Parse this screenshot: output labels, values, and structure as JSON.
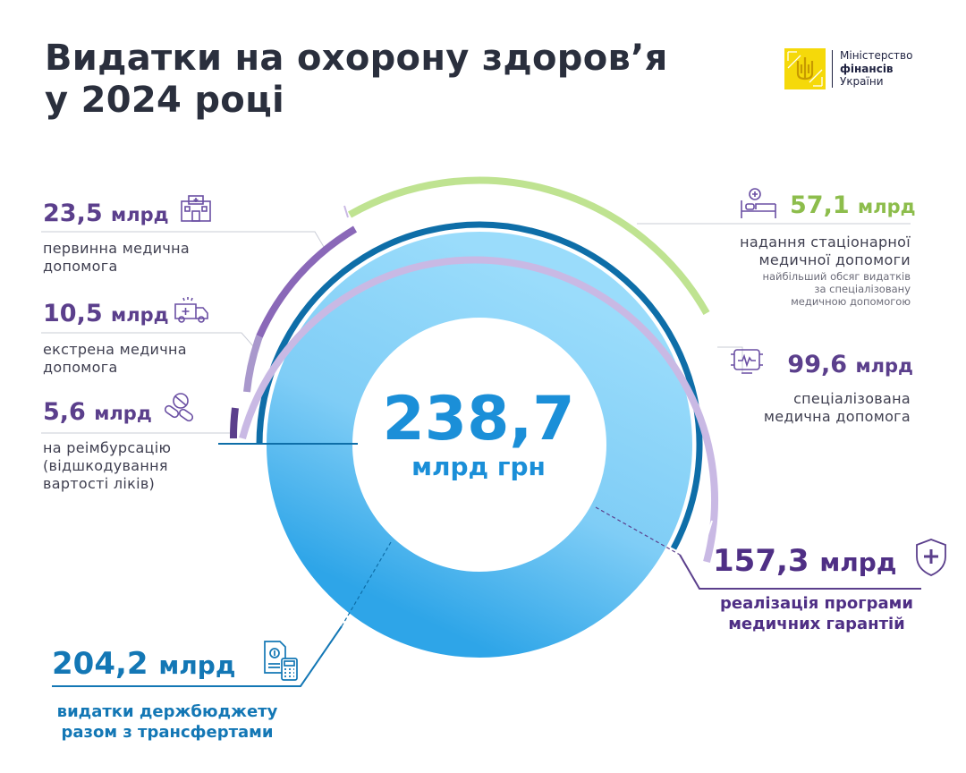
{
  "header": {
    "title_line1": "Видатки на охорону здоров’я",
    "title_line2": "у 2024 році"
  },
  "logo": {
    "line1": "Міністерство",
    "line2": "фінансів",
    "line3": "України",
    "emblem_icon": "trident-icon",
    "color": "#f5d90a"
  },
  "center": {
    "value": "238,7",
    "unit": "млрд грн"
  },
  "labels": {
    "primary": {
      "value": "23,5",
      "unit": "млрд",
      "line1": "первинна медична",
      "line2": "допомога",
      "icon": "clinic-icon"
    },
    "emergency": {
      "value": "10,5",
      "unit": "млрд",
      "line1": "екстрена медична",
      "line2": "допомога",
      "icon": "ambulance-icon"
    },
    "reimbursement": {
      "value": "5,6",
      "unit": "млрд",
      "line1": "на реімбурсацію",
      "line2": "(відшкодування",
      "line3": "вартості ліків)",
      "icon": "pills-icon"
    },
    "inpatient": {
      "value": "57,1",
      "unit": "млрд",
      "line1": "надання стаціонарної",
      "line2": "медичної допомоги",
      "note1": "найбільший обсяг видатків",
      "note2": "за спеціалізовану",
      "note3": "медичною допомогою",
      "icon": "hospital-bed-icon"
    },
    "specialized": {
      "value": "99,6",
      "unit": "млрд",
      "line1": "спеціалізована",
      "line2": "медична допомога",
      "icon": "monitor-heart-icon"
    },
    "guarantees": {
      "value": "157,3",
      "unit": "млрд",
      "line1": "реалізація програми",
      "line2": "медичних гарантій",
      "icon": "shield-cross-icon"
    },
    "budget": {
      "value": "204,2",
      "unit": "млрд",
      "line1": "видатки держбюджету",
      "line2": "разом з трансфертами",
      "icon": "calculator-icon"
    }
  },
  "colors": {
    "donut_light": "#8ed6fa",
    "donut_dark": "#2aa2e6",
    "dark_blue_ring": "#0e6ea8",
    "lavender": "#c9b9e4",
    "purple": "#8a68b8",
    "deep_purple": "#5b3f8c",
    "green": "#b8e08a",
    "accent_blue": "#1b8fd8"
  },
  "chart_data": {
    "type": "pie",
    "total": 238.7,
    "unit": "млрд грн",
    "categories": [
      "видатки держбюджету разом з трансфертами",
      "реалізація програми медичних гарантій",
      "спеціалізована медична допомога",
      "надання стаціонарної медичної допомоги",
      "первинна медична допомога",
      "екстрена медична допомога",
      "на реімбурсацію (відшкодування вартості ліків)"
    ],
    "values": [
      204.2,
      157.3,
      99.6,
      57.1,
      23.5,
      10.5,
      5.6
    ],
    "hierarchy": {
      "238,7": [
        "204,2"
      ],
      "204,2": [
        "157,3"
      ],
      "157,3": [
        "99,6",
        "23,5",
        "10,5",
        "5,6"
      ],
      "99,6": [
        "57,1"
      ]
    }
  }
}
